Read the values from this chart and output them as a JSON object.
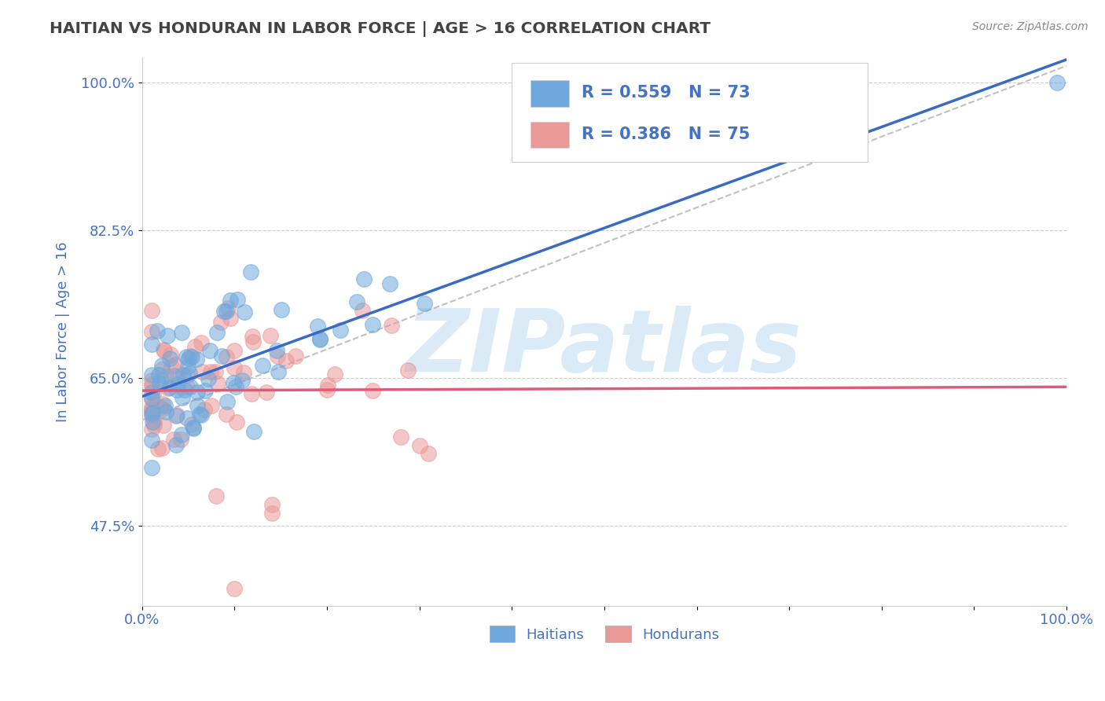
{
  "title": "HAITIAN VS HONDURAN IN LABOR FORCE | AGE > 16 CORRELATION CHART",
  "source_text": "Source: ZipAtlas.com",
  "ylabel": "In Labor Force | Age > 16",
  "xlim": [
    0.0,
    1.0
  ],
  "ylim": [
    0.38,
    1.03
  ],
  "yticks": [
    0.475,
    0.65,
    0.825,
    1.0
  ],
  "ytick_labels": [
    "47.5%",
    "65.0%",
    "82.5%",
    "100.0%"
  ],
  "xtick_labels": [
    "0.0%",
    "",
    "",
    "",
    "",
    "",
    "",
    "",
    "",
    "",
    "100.0%"
  ],
  "haitian_R": 0.559,
  "haitian_N": 73,
  "honduran_R": 0.386,
  "honduran_N": 75,
  "haitian_color": "#6fa8dc",
  "honduran_color": "#ea9999",
  "haitian_line_color": "#3a6bc4",
  "honduran_line_color": "#e05a7a",
  "dashed_line_color": "#c0c0c0",
  "background_color": "#ffffff",
  "grid_color": "#cccccc",
  "title_color": "#434343",
  "tick_label_color": "#4472c4",
  "legend_text_color": "#000000",
  "legend_value_color": "#4472c4",
  "watermark_color": "#daeaf7",
  "watermark_text": "ZIPatlas",
  "bottom_legend_color": "#4472c4"
}
